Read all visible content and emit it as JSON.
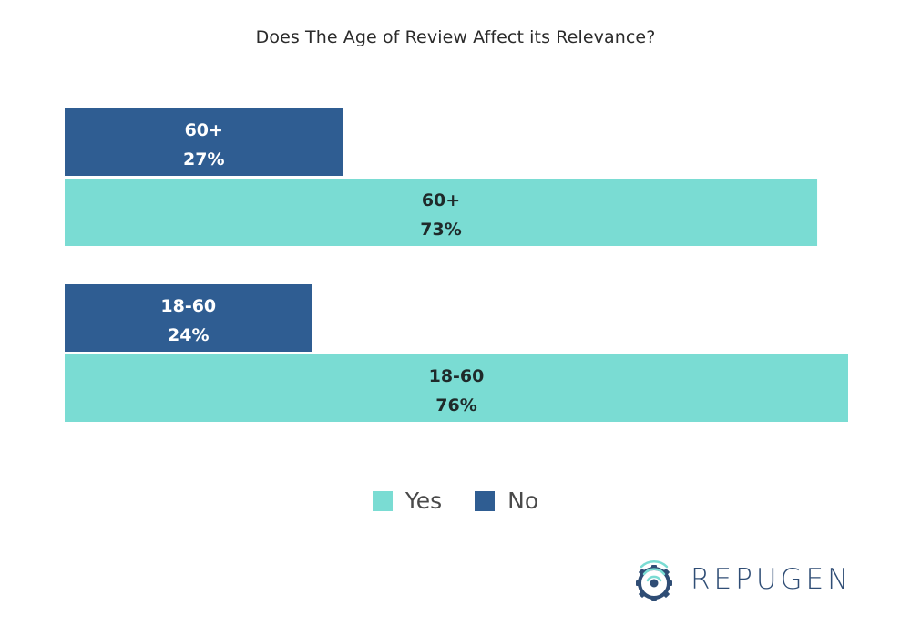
{
  "colors": {
    "yes": "#7adcd3",
    "no": "#2f5d92",
    "label_on_yes": "#1f2a2a",
    "label_on_no": "#ffffff"
  },
  "chart_data": {
    "type": "bar",
    "orientation": "horizontal",
    "title": "Does The Age of Review Affect its Relevance?",
    "categories": [
      "60+",
      "18-60"
    ],
    "series": [
      {
        "name": "No",
        "values": [
          27,
          24
        ],
        "labels": [
          "27%",
          "24%"
        ]
      },
      {
        "name": "Yes",
        "values": [
          73,
          76
        ],
        "labels": [
          "73%",
          "76%"
        ]
      }
    ],
    "xlim": [
      0,
      76
    ],
    "grid": false,
    "legend": {
      "placement": "bottom-center",
      "entries": [
        "Yes",
        "No"
      ]
    }
  },
  "logo": {
    "text": "REPUGEN"
  }
}
